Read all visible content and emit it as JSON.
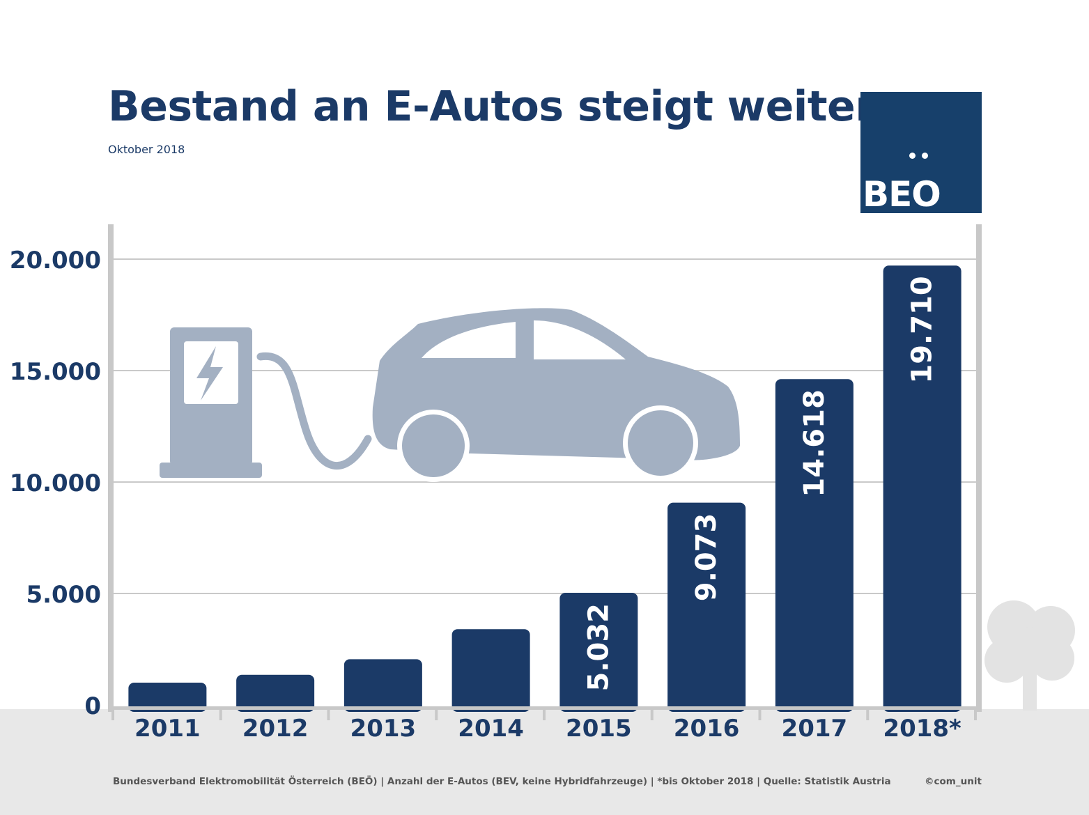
{
  "header": {
    "title": "Bestand an E-Autos steigt weiter",
    "subtitle": "Oktober 2018"
  },
  "logo": {
    "text": "BEO",
    "dots": "••",
    "color": "#17406b"
  },
  "chart_data": {
    "type": "bar",
    "categories": [
      "2011",
      "2012",
      "2013",
      "2014",
      "2015",
      "2016",
      "2017",
      "2018*"
    ],
    "values": [
      1000,
      1350,
      2050,
      3400,
      5032,
      9073,
      14618,
      19710
    ],
    "data_labels": [
      "",
      "",
      "",
      "",
      "5.032",
      "9.073",
      "14.618",
      "19.710"
    ],
    "yticks": [
      0,
      5000,
      10000,
      15000,
      20000
    ],
    "ytick_labels": [
      "0",
      "5.000",
      "10.000",
      "15.000",
      "20.000"
    ],
    "ylim": [
      0,
      20000
    ],
    "grid": true,
    "bar_color": "#1b3a67",
    "illustration_color": "#a3b0c2"
  },
  "icons": [
    "charging-station-icon",
    "lightning-bolt-icon",
    "electric-car-icon",
    "tree-icon"
  ],
  "footer": {
    "note": "Bundesverband Elektromobilität Österreich (BEÖ) | Anzahl der E-Autos (BEV, keine Hybridfahrzeuge) | *bis Oktober 2018 | Quelle: Statistik Austria",
    "credit": "©com_unit"
  }
}
